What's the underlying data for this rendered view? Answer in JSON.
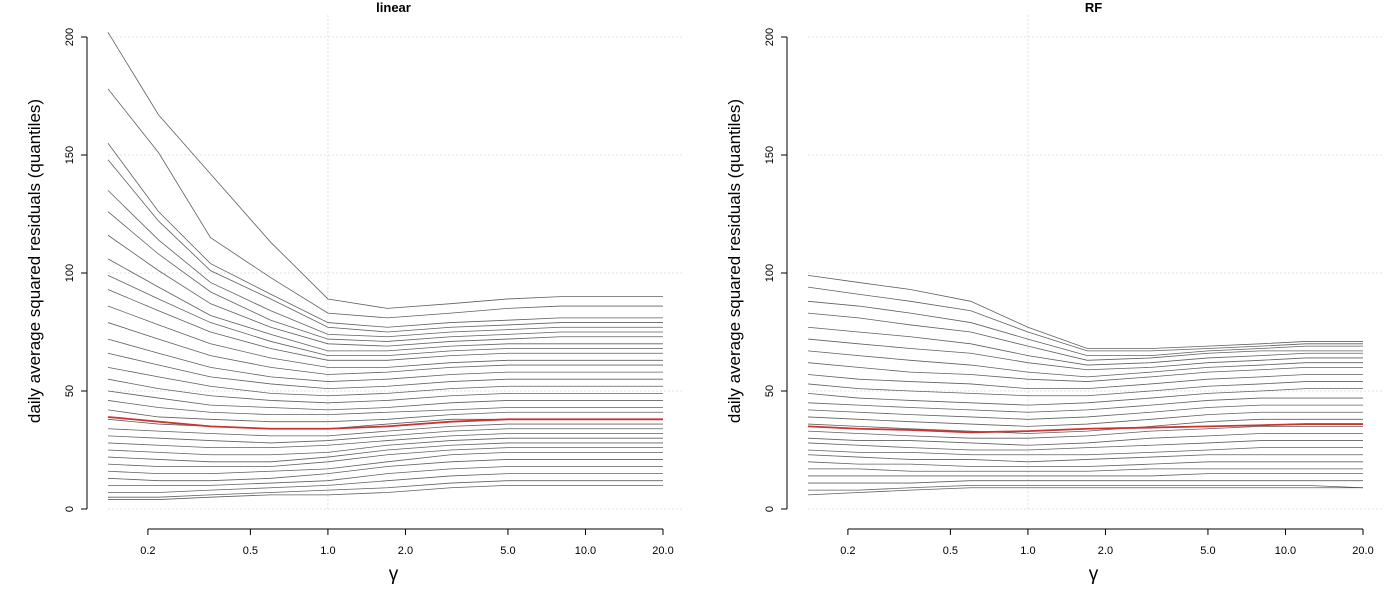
{
  "chart_data": [
    {
      "type": "line",
      "title": "linear",
      "xlabel": "γ",
      "ylabel": "daily average squared residuals (quantiles)",
      "x_scale": "log",
      "x_ticks": [
        0.2,
        0.5,
        1.0,
        2.0,
        5.0,
        10.0,
        20.0
      ],
      "x_tick_labels": [
        "0.2",
        "0.5",
        "1.0",
        "2.0",
        "5.0",
        "10.0",
        "20.0"
      ],
      "xlim": [
        0.14,
        20
      ],
      "y_ticks": [
        0,
        50,
        100,
        150,
        200
      ],
      "y_tick_labels": [
        "0",
        "50",
        "100",
        "150",
        "200"
      ],
      "ylim": [
        0,
        200
      ],
      "grid": true,
      "gamma": [
        0.14,
        0.22,
        0.35,
        0.6,
        1.0,
        1.7,
        3.0,
        5.0,
        8.0,
        12.0,
        20.0
      ],
      "series_color": "#444444",
      "highlight_color": "#cc3333",
      "series": [
        {
          "values": [
            202,
            167,
            142,
            113,
            89,
            85,
            87,
            89,
            90,
            90,
            90
          ]
        },
        {
          "values": [
            178,
            151,
            115,
            98,
            83,
            81,
            83,
            85,
            86,
            86,
            86
          ]
        },
        {
          "values": [
            155,
            126,
            104,
            91,
            79,
            77,
            79,
            80,
            81,
            81,
            81
          ]
        },
        {
          "values": [
            148,
            122,
            101,
            89,
            77,
            75,
            77,
            78,
            79,
            79,
            79
          ]
        },
        {
          "values": [
            135,
            114,
            96,
            84,
            74,
            73,
            75,
            76,
            77,
            77,
            77
          ]
        },
        {
          "values": [
            126,
            108,
            92,
            80,
            72,
            71,
            73,
            74,
            75,
            75,
            75
          ]
        },
        {
          "values": [
            116,
            101,
            87,
            77,
            70,
            69,
            71,
            72,
            73,
            73,
            73
          ]
        },
        {
          "values": [
            106,
            94,
            82,
            74,
            67,
            67,
            69,
            70,
            70,
            70,
            70
          ]
        },
        {
          "values": [
            99,
            89,
            79,
            71,
            65,
            65,
            67,
            68,
            68,
            68,
            68
          ]
        },
        {
          "values": [
            93,
            84,
            75,
            68,
            63,
            63,
            65,
            66,
            66,
            66,
            66
          ]
        },
        {
          "values": [
            86,
            78,
            70,
            64,
            60,
            60,
            62,
            63,
            63,
            63,
            63
          ]
        },
        {
          "values": [
            79,
            72,
            65,
            60,
            57,
            58,
            60,
            61,
            61,
            61,
            61
          ]
        },
        {
          "values": [
            72,
            66,
            60,
            56,
            54,
            55,
            57,
            58,
            58,
            58,
            58
          ]
        },
        {
          "values": [
            66,
            61,
            56,
            53,
            51,
            52,
            54,
            55,
            55,
            55,
            55
          ]
        },
        {
          "values": [
            60,
            56,
            52,
            49,
            48,
            49,
            51,
            52,
            52,
            52,
            52
          ]
        },
        {
          "values": [
            55,
            51,
            48,
            46,
            45,
            46,
            48,
            49,
            49,
            49,
            49
          ]
        },
        {
          "values": [
            50,
            47,
            44,
            43,
            42,
            43,
            45,
            46,
            46,
            46,
            46
          ]
        },
        {
          "values": [
            46,
            43,
            41,
            40,
            40,
            41,
            42,
            43,
            43,
            43,
            43
          ]
        },
        {
          "values": [
            42,
            39,
            38,
            37,
            37,
            38,
            40,
            41,
            41,
            41,
            41
          ]
        },
        {
          "values": [
            38,
            36,
            35,
            34,
            34,
            36,
            38,
            38,
            38,
            38,
            38
          ]
        },
        {
          "values": [
            34,
            33,
            32,
            31,
            31,
            33,
            35,
            36,
            36,
            36,
            36
          ]
        },
        {
          "values": [
            31,
            30,
            29,
            28,
            29,
            31,
            33,
            34,
            34,
            34,
            34
          ]
        },
        {
          "values": [
            28,
            27,
            26,
            26,
            27,
            29,
            31,
            32,
            32,
            32,
            32
          ]
        },
        {
          "values": [
            25,
            24,
            23,
            23,
            24,
            27,
            29,
            30,
            30,
            30,
            30
          ]
        },
        {
          "values": [
            22,
            21,
            20,
            20,
            22,
            25,
            27,
            28,
            28,
            28,
            28
          ]
        },
        {
          "values": [
            19,
            18,
            18,
            18,
            20,
            23,
            25,
            26,
            26,
            26,
            26
          ]
        },
        {
          "values": [
            16,
            15,
            15,
            16,
            17,
            20,
            23,
            24,
            24,
            24,
            24
          ]
        },
        {
          "values": [
            13,
            12,
            12,
            13,
            15,
            18,
            20,
            21,
            21,
            21,
            21
          ]
        },
        {
          "values": [
            10,
            10,
            10,
            11,
            12,
            15,
            17,
            18,
            18,
            18,
            18
          ]
        },
        {
          "values": [
            7,
            7,
            8,
            9,
            10,
            12,
            14,
            15,
            15,
            15,
            15
          ]
        },
        {
          "values": [
            5,
            5,
            6,
            7,
            8,
            9,
            11,
            12,
            12,
            12,
            12
          ]
        },
        {
          "values": [
            4,
            4,
            5,
            6,
            6,
            7,
            9,
            10,
            10,
            10,
            10
          ]
        }
      ],
      "highlight": {
        "values": [
          39,
          37,
          35,
          34,
          34,
          35,
          37,
          38,
          38,
          38,
          38
        ]
      }
    },
    {
      "type": "line",
      "title": "RF",
      "xlabel": "γ",
      "ylabel": "daily average squared residuals (quantiles)",
      "x_scale": "log",
      "x_ticks": [
        0.2,
        0.5,
        1.0,
        2.0,
        5.0,
        10.0,
        20.0
      ],
      "x_tick_labels": [
        "0.2",
        "0.5",
        "1.0",
        "2.0",
        "5.0",
        "10.0",
        "20.0"
      ],
      "xlim": [
        0.14,
        20
      ],
      "y_ticks": [
        0,
        50,
        100,
        150,
        200
      ],
      "y_tick_labels": [
        "0",
        "50",
        "100",
        "150",
        "200"
      ],
      "ylim": [
        0,
        200
      ],
      "grid": true,
      "gamma": [
        0.14,
        0.22,
        0.35,
        0.6,
        1.0,
        1.7,
        3.0,
        5.0,
        8.0,
        12.0,
        20.0
      ],
      "series_color": "#444444",
      "highlight_color": "#cc3333",
      "series": [
        {
          "values": [
            99,
            96,
            93,
            88,
            77,
            68,
            68,
            69,
            70,
            71,
            71
          ]
        },
        {
          "values": [
            94,
            91,
            88,
            84,
            75,
            67,
            67,
            68,
            69,
            70,
            70
          ]
        },
        {
          "values": [
            88,
            86,
            83,
            79,
            72,
            65,
            65,
            67,
            68,
            69,
            69
          ]
        },
        {
          "values": [
            83,
            81,
            78,
            75,
            69,
            63,
            64,
            66,
            67,
            67,
            67
          ]
        },
        {
          "values": [
            77,
            75,
            73,
            70,
            65,
            61,
            62,
            64,
            65,
            66,
            66
          ]
        },
        {
          "values": [
            72,
            70,
            68,
            66,
            62,
            59,
            60,
            62,
            63,
            64,
            64
          ]
        },
        {
          "values": [
            67,
            65,
            63,
            61,
            58,
            56,
            58,
            60,
            61,
            62,
            62
          ]
        },
        {
          "values": [
            62,
            60,
            58,
            57,
            55,
            54,
            56,
            58,
            59,
            60,
            60
          ]
        },
        {
          "values": [
            57,
            55,
            54,
            53,
            51,
            51,
            53,
            55,
            56,
            57,
            57
          ]
        },
        {
          "values": [
            53,
            51,
            50,
            49,
            48,
            48,
            50,
            52,
            53,
            54,
            54
          ]
        },
        {
          "values": [
            49,
            47,
            46,
            45,
            44,
            45,
            47,
            49,
            50,
            51,
            51
          ]
        },
        {
          "values": [
            45,
            44,
            43,
            42,
            41,
            42,
            44,
            46,
            47,
            47,
            47
          ]
        },
        {
          "values": [
            42,
            41,
            40,
            39,
            38,
            39,
            41,
            43,
            44,
            44,
            44
          ]
        },
        {
          "values": [
            39,
            38,
            37,
            36,
            35,
            36,
            38,
            40,
            41,
            41,
            41
          ]
        },
        {
          "values": [
            36,
            35,
            34,
            33,
            32,
            33,
            35,
            37,
            38,
            38,
            38
          ]
        },
        {
          "values": [
            33,
            32,
            31,
            30,
            30,
            31,
            33,
            34,
            35,
            35,
            35
          ]
        },
        {
          "values": [
            30,
            29,
            29,
            28,
            27,
            28,
            30,
            31,
            32,
            32,
            32
          ]
        },
        {
          "values": [
            28,
            27,
            26,
            25,
            25,
            26,
            27,
            28,
            29,
            29,
            29
          ]
        },
        {
          "values": [
            25,
            24,
            24,
            23,
            23,
            23,
            24,
            25,
            26,
            26,
            26
          ]
        },
        {
          "values": [
            23,
            22,
            21,
            21,
            20,
            21,
            22,
            23,
            23,
            23,
            23
          ]
        },
        {
          "values": [
            20,
            19,
            19,
            18,
            18,
            18,
            19,
            20,
            20,
            20,
            20
          ]
        },
        {
          "values": [
            17,
            17,
            16,
            16,
            16,
            16,
            17,
            17,
            17,
            17,
            17
          ]
        },
        {
          "values": [
            14,
            14,
            14,
            14,
            14,
            14,
            14,
            15,
            15,
            15,
            15
          ]
        },
        {
          "values": [
            11,
            11,
            11,
            12,
            12,
            12,
            12,
            12,
            12,
            12,
            12
          ]
        },
        {
          "values": [
            8,
            8,
            9,
            10,
            10,
            10,
            10,
            10,
            10,
            10,
            9
          ]
        },
        {
          "values": [
            6,
            7,
            8,
            9,
            9,
            9,
            9,
            9,
            9,
            9,
            9
          ]
        }
      ],
      "highlight": {
        "values": [
          35,
          34,
          33.5,
          32.5,
          33,
          34,
          34.5,
          35,
          35.5,
          36,
          36
        ]
      }
    }
  ]
}
